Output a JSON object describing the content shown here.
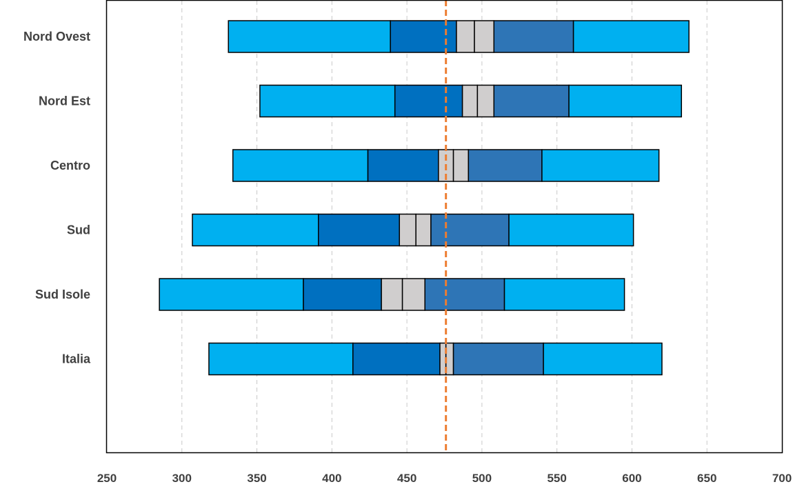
{
  "chart_data": {
    "type": "bar",
    "subtype": "horizontal-stacked-percentile-ranges",
    "title": "",
    "xlabel": "",
    "ylabel": "",
    "xlim": [
      250,
      700
    ],
    "xticks": [
      "250",
      "300",
      "350",
      "400",
      "450",
      "500",
      "550",
      "600",
      "650",
      "700"
    ],
    "grid": "vertical dashed",
    "legend": "none",
    "reference_line": {
      "value": 476,
      "style": "dashed",
      "color": "#ED7D31"
    },
    "categories": [
      "Nord Ovest",
      "Nord Est",
      "Centro",
      "Sud",
      "Sud Isole",
      "Italia"
    ],
    "segment_colors": [
      "#00B0F0",
      "#0070C0",
      "#D0CECE",
      "#D0CECE",
      "#2E75B6",
      "#00B0F0"
    ],
    "boundaries": [
      [
        331,
        439,
        483,
        495,
        508,
        561,
        638
      ],
      [
        352,
        442,
        487,
        497,
        508,
        558,
        633
      ],
      [
        334,
        424,
        471,
        481,
        491,
        540,
        618
      ],
      [
        307,
        391,
        445,
        456,
        466,
        518,
        601
      ],
      [
        285,
        381,
        433,
        447,
        462,
        515,
        595
      ],
      [
        318,
        414,
        472,
        476,
        481,
        541,
        620
      ]
    ]
  }
}
